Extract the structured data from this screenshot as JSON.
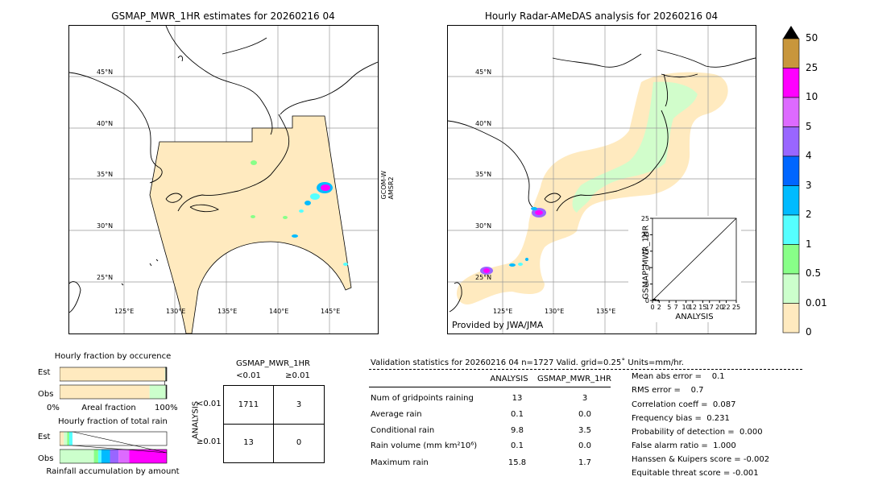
{
  "left_map": {
    "title": "GSMAP_MWR_1HR estimates for 20260216 04",
    "side_label": "GCOM-W\nAMSR2",
    "lat_labels": [
      "45°N",
      "40°N",
      "35°N",
      "30°N",
      "25°N"
    ],
    "lon_labels": [
      "125°E",
      "130°E",
      "135°E",
      "140°E",
      "145°E"
    ]
  },
  "right_map": {
    "title": "Hourly Radar-AMeDAS analysis for 20260216 04",
    "credit": "Provided by JWA/JMA",
    "lat_labels": [
      "45°N",
      "40°N",
      "35°N",
      "30°N",
      "25°N"
    ],
    "lon_labels": [
      "125°E",
      "130°E",
      "135°E"
    ]
  },
  "colorbar": {
    "labels": [
      "50",
      "25",
      "10",
      "5",
      "4",
      "3",
      "2",
      "1",
      "0.5",
      "0.01",
      "0"
    ],
    "colors": [
      "#c8963c",
      "#ff00ff",
      "#dd6aff",
      "#9966ff",
      "#0066ff",
      "#00bbff",
      "#55ffff",
      "#88ff88",
      "#ccffcc",
      "#ffeabf"
    ]
  },
  "chart_data": [
    {
      "type": "scatter",
      "title": "",
      "xlabel": "ANALYSIS",
      "ylabel": "GSMAP_MWR_1HR",
      "xlim": [
        0,
        25
      ],
      "ylim": [
        0,
        25
      ],
      "xticks": [
        "0",
        "2",
        "5",
        "7",
        "10",
        "12",
        "15",
        "17",
        "20",
        "22",
        "25"
      ],
      "yticks": [
        "0",
        "5",
        "10",
        "15",
        "20",
        "25"
      ],
      "diagonal": [
        [
          0,
          0
        ],
        [
          25,
          25
        ]
      ],
      "points": [
        [
          0.3,
          0.2
        ],
        [
          0.6,
          0.3
        ],
        [
          1.0,
          0.1
        ],
        [
          1.7,
          0.0
        ]
      ]
    },
    {
      "type": "bar",
      "title": "Hourly fraction by occurence",
      "categories": [
        "Est",
        "Obs"
      ],
      "xlabel": "Areal fraction",
      "xlabel_left": "0%",
      "xlabel_right": "100%",
      "series": [
        {
          "category": "Est",
          "segments": [
            {
              "color": "#ffeabf",
              "value": 0.983
            },
            {
              "color": "#ccffcc",
              "value": 0.005
            },
            {
              "color": "#333333",
              "value": 0.012
            }
          ]
        },
        {
          "category": "Obs",
          "segments": [
            {
              "color": "#ffeabf",
              "value": 0.84
            },
            {
              "color": "#ccffcc",
              "value": 0.15
            },
            {
              "color": "#333333",
              "value": 0.01
            }
          ]
        }
      ]
    },
    {
      "type": "bar",
      "title": "Hourly fraction of total rain",
      "categories": [
        "Est",
        "Obs"
      ],
      "xlabel": "Rainfall accumulation by amount",
      "series": [
        {
          "category": "Est",
          "segments": [
            {
              "color": "#ffeabf",
              "value": 0.04
            },
            {
              "color": "#ccffcc",
              "value": 0.03
            },
            {
              "color": "#88ff88",
              "value": 0.02
            },
            {
              "color": "#55ffff",
              "value": 0.03
            }
          ]
        },
        {
          "category": "Obs",
          "segments": [
            {
              "color": "#ccffcc",
              "value": 0.32
            },
            {
              "color": "#88ff88",
              "value": 0.04
            },
            {
              "color": "#55ffff",
              "value": 0.03
            },
            {
              "color": "#00bbff",
              "value": 0.08
            },
            {
              "color": "#9966ff",
              "value": 0.08
            },
            {
              "color": "#dd6aff",
              "value": 0.1
            },
            {
              "color": "#ff00ff",
              "value": 0.35
            }
          ]
        }
      ]
    }
  ],
  "contingency": {
    "title": "GSMAP_MWR_1HR",
    "col_headers": [
      "<0.01",
      "≥0.01"
    ],
    "row_axis": "ANALYSIS",
    "row_headers": [
      "<0.01",
      "≥0.01"
    ],
    "cells": [
      [
        "1711",
        "3"
      ],
      [
        "13",
        "0"
      ]
    ]
  },
  "validation": {
    "header": "Validation statistics for 20260216 04  n=1727 Valid. grid=0.25˚ Units=mm/hr.",
    "col_analysis": "ANALYSIS",
    "col_gsmap": "GSMAP_MWR_1HR",
    "rows": [
      {
        "label": "Num of gridpoints raining",
        "a": "13",
        "g": "3"
      },
      {
        "label": "Average rain",
        "a": "0.1",
        "g": "0.0"
      },
      {
        "label": "Conditional rain",
        "a": "9.8",
        "g": "3.5"
      },
      {
        "label": "Rain volume (mm km²10⁶)",
        "a": "0.1",
        "g": "0.0"
      },
      {
        "label": "Maximum rain",
        "a": "15.8",
        "g": "1.7"
      }
    ],
    "scores": [
      "Mean abs error =    0.1",
      "RMS error =    0.7",
      "Correlation coeff =  0.087",
      "Frequency bias =  0.231",
      "Probability of detection =  0.000",
      "False alarm ratio =  1.000",
      "Hanssen & Kuipers score = -0.002",
      "Equitable threat score = -0.001"
    ]
  }
}
